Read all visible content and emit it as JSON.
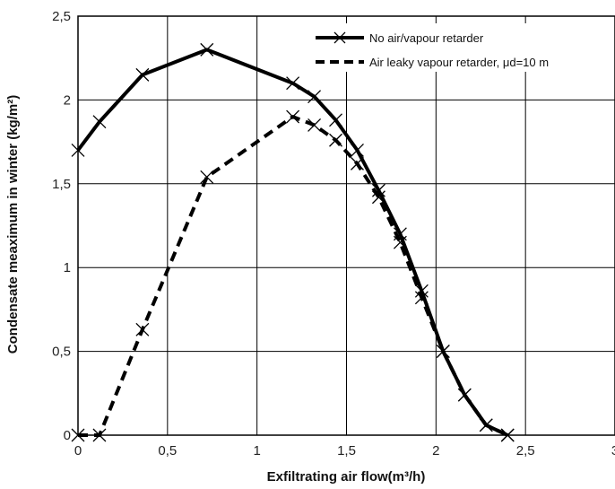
{
  "chart_data": {
    "type": "line",
    "xlabel": "Exfiltrating air flow(m³/h)",
    "ylabel": "Condensate meaximum in winter (kg/m²)",
    "xlim": [
      0,
      3
    ],
    "ylim": [
      0,
      2.5
    ],
    "x_ticks": [
      0,
      0.5,
      1,
      1.5,
      2,
      2.5,
      3
    ],
    "x_tick_labels": [
      "0",
      "0,5",
      "1",
      "1,5",
      "2",
      "2,5",
      "3"
    ],
    "y_ticks": [
      0,
      0.5,
      1,
      1.5,
      2,
      2.5
    ],
    "y_tick_labels": [
      "0",
      "0,5",
      "1",
      "1,5",
      "2",
      "2,5"
    ],
    "grid": true,
    "legend_position": "top-right",
    "series": [
      {
        "name": "No air/vapour retarder",
        "style": "solid",
        "color": "#000000",
        "x": [
          0,
          0.12,
          0.36,
          0.72,
          1.2,
          1.32,
          1.44,
          1.56,
          1.68,
          1.8,
          1.92,
          2.04,
          2.16,
          2.28,
          2.4
        ],
        "y": [
          1.7,
          1.87,
          2.15,
          2.3,
          2.1,
          2.02,
          1.88,
          1.7,
          1.46,
          1.2,
          0.86,
          0.5,
          0.24,
          0.06,
          0
        ]
      },
      {
        "name": "Air leaky vapour retarder, μd=10 m",
        "style": "dashed",
        "color": "#000000",
        "x": [
          0,
          0.12,
          0.36,
          0.72,
          1.2,
          1.32,
          1.44,
          1.56,
          1.68,
          1.8,
          1.92,
          2.04,
          2.16,
          2.28,
          2.4
        ],
        "y": [
          0,
          0,
          0.63,
          1.54,
          1.9,
          1.85,
          1.76,
          1.62,
          1.42,
          1.15,
          0.82,
          0.5,
          0.24,
          0.06,
          0
        ]
      }
    ]
  }
}
